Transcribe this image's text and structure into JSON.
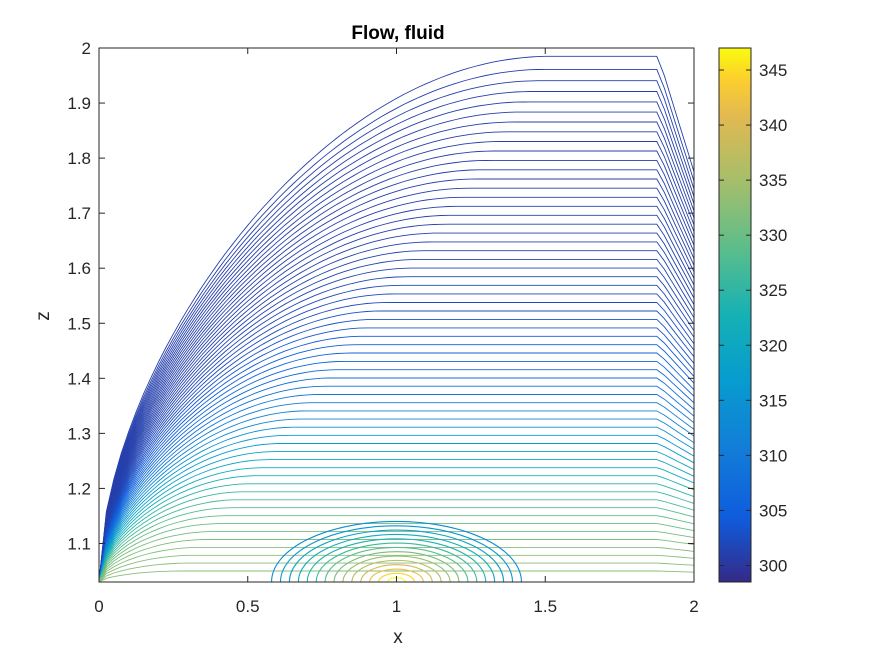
{
  "chart_data": {
    "type": "contour",
    "title": "Flow, fluid",
    "xlabel": "x",
    "ylabel": "z",
    "xlim": [
      0,
      2
    ],
    "ylim": [
      1.03,
      2
    ],
    "xticks": [
      0,
      0.5,
      1,
      1.5,
      2
    ],
    "xtick_labels": [
      "0",
      "0.5",
      "1",
      "1.5",
      "2"
    ],
    "yticks": [
      1.1,
      1.2,
      1.3,
      1.4,
      1.5,
      1.6,
      1.7,
      1.8,
      1.9,
      2
    ],
    "ytick_labels": [
      "1.1",
      "1.2",
      "1.3",
      "1.4",
      "1.5",
      "1.6",
      "1.7",
      "1.8",
      "1.9",
      "2"
    ],
    "colorbar": {
      "limits": [
        298.5,
        347
      ],
      "ticks": [
        300,
        305,
        310,
        315,
        320,
        325,
        330,
        335,
        340,
        345
      ],
      "tick_labels": [
        "300",
        "305",
        "310",
        "315",
        "320",
        "325",
        "330",
        "335",
        "340",
        "345"
      ],
      "colormap": "parula"
    },
    "hotspot": {
      "x": 1.0,
      "z": 1.03,
      "value": 347
    },
    "contour_levels": 60,
    "grid": false,
    "colors": {
      "contour_low": "#3b35c8",
      "hot": "#f9fb0e",
      "axes": "#262626"
    }
  }
}
